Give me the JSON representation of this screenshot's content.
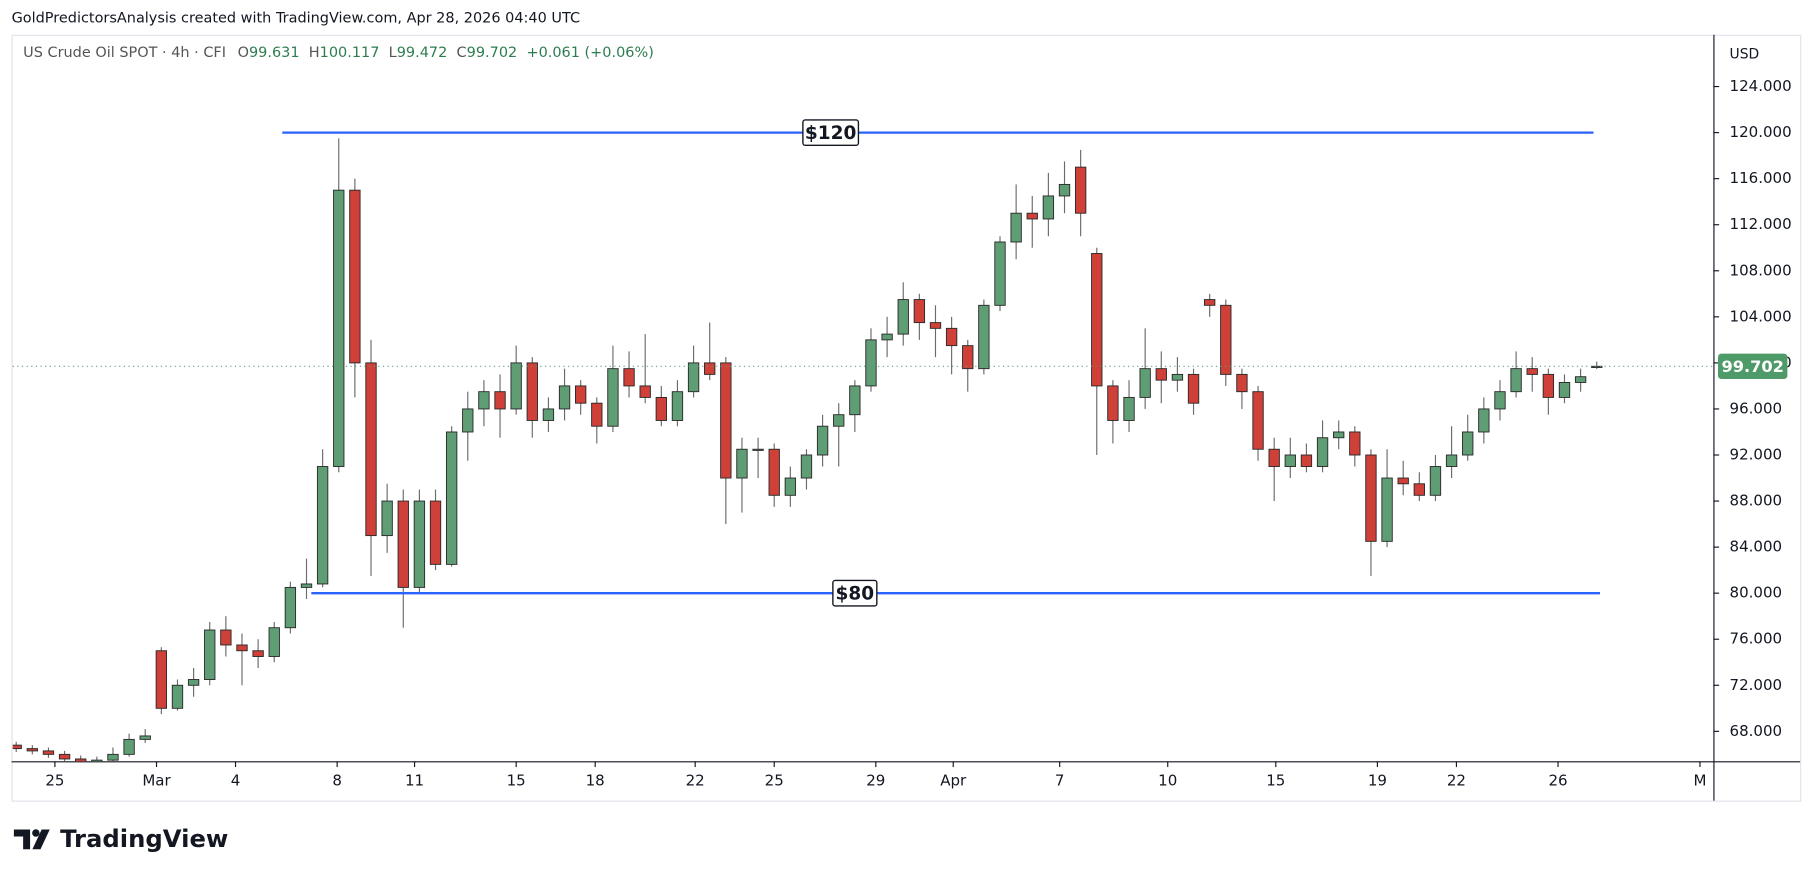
{
  "chart_data": {
    "type": "candlestick",
    "watermark_caption": "GoldPredictorsAnalysis created with TradingView.com, Apr 28, 2026 04:40 UTC",
    "legend": {
      "symbol": "US Crude Oil SPOT · 4h · CFI",
      "open_label": "O",
      "open": "99.631",
      "high_label": "H",
      "high": "100.117",
      "low_label": "L",
      "low": "99.472",
      "close_label": "C",
      "close": "99.702",
      "change": "+0.061 (+0.06%)"
    },
    "currency": "USD",
    "up_color": "#5f9e75",
    "down_color": "#cf4038",
    "candles": [
      [
        66.8,
        67.1,
        66.2,
        66.5
      ],
      [
        66.5,
        66.8,
        66.0,
        66.3
      ],
      [
        66.3,
        66.6,
        65.7,
        66.0
      ],
      [
        66.0,
        66.3,
        65.3,
        65.6
      ],
      [
        65.6,
        65.9,
        65.0,
        65.3
      ],
      [
        65.3,
        65.8,
        65.0,
        65.5
      ],
      [
        65.5,
        66.6,
        65.2,
        66.0
      ],
      [
        66.0,
        67.8,
        65.8,
        67.3
      ],
      [
        67.3,
        68.2,
        67.0,
        67.6
      ],
      [
        75.0,
        75.3,
        69.5,
        70.0
      ],
      [
        70.0,
        72.5,
        69.8,
        72.0
      ],
      [
        72.0,
        73.5,
        71.0,
        72.5
      ],
      [
        72.5,
        77.5,
        72.0,
        76.8
      ],
      [
        76.8,
        78.0,
        74.5,
        75.5
      ],
      [
        75.5,
        76.5,
        72.0,
        75.0
      ],
      [
        75.0,
        76.0,
        73.5,
        74.5
      ],
      [
        74.5,
        77.5,
        74.0,
        77.0
      ],
      [
        77.0,
        81.0,
        76.5,
        80.5
      ],
      [
        80.5,
        83.0,
        79.5,
        80.8
      ],
      [
        80.8,
        92.5,
        80.5,
        91.0
      ],
      [
        91.0,
        119.5,
        90.5,
        115.0
      ],
      [
        115.0,
        116.0,
        97.0,
        100.0
      ],
      [
        100.0,
        102.0,
        81.5,
        85.0
      ],
      [
        85.0,
        89.5,
        83.5,
        88.0
      ],
      [
        88.0,
        89.0,
        77.0,
        80.5
      ],
      [
        80.5,
        89.0,
        80.0,
        88.0
      ],
      [
        88.0,
        89.0,
        82.0,
        82.5
      ],
      [
        82.5,
        94.5,
        82.3,
        94.0
      ],
      [
        94.0,
        97.5,
        91.5,
        96.0
      ],
      [
        96.0,
        98.5,
        94.5,
        97.5
      ],
      [
        97.5,
        99.0,
        93.5,
        96.0
      ],
      [
        96.0,
        101.5,
        95.5,
        100.0
      ],
      [
        100.0,
        100.5,
        93.5,
        95.0
      ],
      [
        95.0,
        97.0,
        94.0,
        96.0
      ],
      [
        96.0,
        99.5,
        95.0,
        98.0
      ],
      [
        98.0,
        98.5,
        95.5,
        96.5
      ],
      [
        96.5,
        97.0,
        93.0,
        94.5
      ],
      [
        94.5,
        101.5,
        94.0,
        99.5
      ],
      [
        99.5,
        101.0,
        97.0,
        98.0
      ],
      [
        98.0,
        102.5,
        96.5,
        97.0
      ],
      [
        97.0,
        98.0,
        94.5,
        95.0
      ],
      [
        95.0,
        98.5,
        94.5,
        97.5
      ],
      [
        97.5,
        101.5,
        97.0,
        100.0
      ],
      [
        100.0,
        103.5,
        98.5,
        99.0
      ],
      [
        100.0,
        100.5,
        86.0,
        90.0
      ],
      [
        90.0,
        93.5,
        87.0,
        92.5
      ],
      [
        92.5,
        93.5,
        90.0,
        92.5
      ],
      [
        92.5,
        93.0,
        87.5,
        88.5
      ],
      [
        88.5,
        91.0,
        87.5,
        90.0
      ],
      [
        90.0,
        92.5,
        89.0,
        92.0
      ],
      [
        92.0,
        95.5,
        91.0,
        94.5
      ],
      [
        94.5,
        96.5,
        91.0,
        95.5
      ],
      [
        95.5,
        98.5,
        94.0,
        98.0
      ],
      [
        98.0,
        103.0,
        97.5,
        102.0
      ],
      [
        102.0,
        104.0,
        100.5,
        102.5
      ],
      [
        102.5,
        107.0,
        101.5,
        105.5
      ],
      [
        105.5,
        106.0,
        102.0,
        103.5
      ],
      [
        103.5,
        105.0,
        100.5,
        103.0
      ],
      [
        103.0,
        104.0,
        99.0,
        101.5
      ],
      [
        101.5,
        102.0,
        97.5,
        99.5
      ],
      [
        99.5,
        105.5,
        99.0,
        105.0
      ],
      [
        105.0,
        111.0,
        104.5,
        110.5
      ],
      [
        110.5,
        115.5,
        109.0,
        113.0
      ],
      [
        113.0,
        114.5,
        110.0,
        112.5
      ],
      [
        112.5,
        116.5,
        111.0,
        114.5
      ],
      [
        114.5,
        117.5,
        113.0,
        115.5
      ],
      [
        117.0,
        118.5,
        111.0,
        113.0
      ],
      [
        109.5,
        110.0,
        92.0,
        98.0
      ],
      [
        98.0,
        98.5,
        93.0,
        95.0
      ],
      [
        95.0,
        98.5,
        94.0,
        97.0
      ],
      [
        97.0,
        103.0,
        96.0,
        99.5
      ],
      [
        99.5,
        101.0,
        96.5,
        98.5
      ],
      [
        98.5,
        100.5,
        97.5,
        99.0
      ],
      [
        99.0,
        99.5,
        95.5,
        96.5
      ],
      [
        105.5,
        106.0,
        104.0,
        105.0
      ],
      [
        105.0,
        105.5,
        98.0,
        99.0
      ],
      [
        99.0,
        99.5,
        96.0,
        97.5
      ],
      [
        97.5,
        98.0,
        91.5,
        92.5
      ],
      [
        92.5,
        93.5,
        88.0,
        91.0
      ],
      [
        91.0,
        93.5,
        90.0,
        92.0
      ],
      [
        92.0,
        93.0,
        90.5,
        91.0
      ],
      [
        91.0,
        95.0,
        90.5,
        93.5
      ],
      [
        93.5,
        95.0,
        92.5,
        94.0
      ],
      [
        94.0,
        94.5,
        91.0,
        92.0
      ],
      [
        92.0,
        92.5,
        81.5,
        84.5
      ],
      [
        84.5,
        92.5,
        84.0,
        90.0
      ],
      [
        90.0,
        91.5,
        88.5,
        89.5
      ],
      [
        89.5,
        90.5,
        88.0,
        88.5
      ],
      [
        88.5,
        92.0,
        88.0,
        91.0
      ],
      [
        91.0,
        94.5,
        90.0,
        92.0
      ],
      [
        92.0,
        95.5,
        91.5,
        94.0
      ],
      [
        94.0,
        97.0,
        93.0,
        96.0
      ],
      [
        96.0,
        98.5,
        95.0,
        97.5
      ],
      [
        97.5,
        101.0,
        97.0,
        99.5
      ],
      [
        99.5,
        100.5,
        97.5,
        99.0
      ],
      [
        99.0,
        99.5,
        95.5,
        97.0
      ],
      [
        97.0,
        99.0,
        96.5,
        98.3
      ],
      [
        98.3,
        99.5,
        97.5,
        98.8
      ],
      [
        99.631,
        100.117,
        99.472,
        99.702
      ]
    ],
    "xlim": [
      -1,
      104.8
    ],
    "xticks": [
      {
        "value": 2.4,
        "label": "25"
      },
      {
        "value": 8.7,
        "label": "Mar"
      },
      {
        "value": 13.6,
        "label": "4"
      },
      {
        "value": 19.9,
        "label": "8"
      },
      {
        "value": 24.7,
        "label": "11"
      },
      {
        "value": 31,
        "label": "15"
      },
      {
        "value": 35.9,
        "label": "18"
      },
      {
        "value": 42.1,
        "label": "22"
      },
      {
        "value": 47,
        "label": "25"
      },
      {
        "value": 53.3,
        "label": "29"
      },
      {
        "value": 58.1,
        "label": "Apr"
      },
      {
        "value": 64.7,
        "label": "7"
      },
      {
        "value": 71.4,
        "label": "10"
      },
      {
        "value": 78.1,
        "label": "15"
      },
      {
        "value": 84.4,
        "label": "19"
      },
      {
        "value": 89.3,
        "label": "22"
      },
      {
        "value": 95.6,
        "label": "26"
      },
      {
        "value": 104.4,
        "label": "M"
      }
    ],
    "ylim": [
      65.4,
      128.5
    ],
    "yticks": [
      {
        "value": 68,
        "label": "68.000"
      },
      {
        "value": 72,
        "label": "72.000"
      },
      {
        "value": 76,
        "label": "76.000"
      },
      {
        "value": 80,
        "label": "80.000"
      },
      {
        "value": 84,
        "label": "84.000"
      },
      {
        "value": 88,
        "label": "88.000"
      },
      {
        "value": 92,
        "label": "92.000"
      },
      {
        "value": 96,
        "label": "96.000"
      },
      {
        "value": 100,
        "label": "100.000"
      },
      {
        "value": 104,
        "label": "104.000"
      },
      {
        "value": 108,
        "label": "108.000"
      },
      {
        "value": 112,
        "label": "112.000"
      },
      {
        "value": 116,
        "label": "116.000"
      },
      {
        "value": 120,
        "label": "120.000"
      },
      {
        "value": 124,
        "label": "124.000"
      }
    ],
    "last_price": 99.702,
    "levels": [
      {
        "value": 120,
        "label": "$120",
        "color": "#2962ff"
      },
      {
        "value": 80,
        "label": "$80",
        "color": "#2962ff"
      }
    ],
    "brand": "TradingView"
  }
}
